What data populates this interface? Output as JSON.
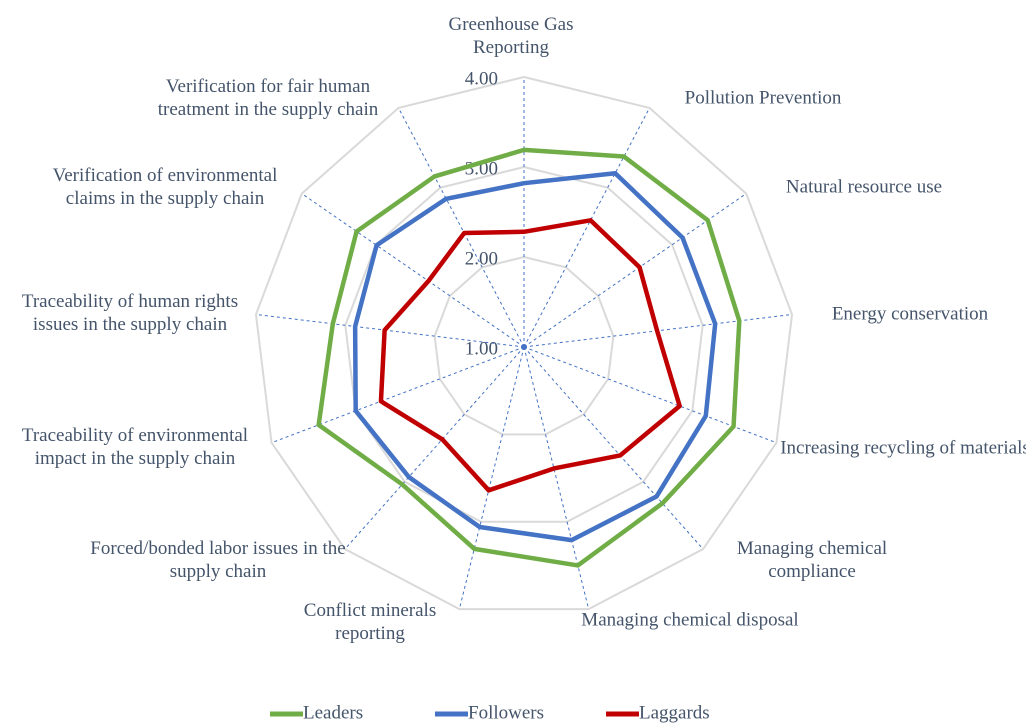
{
  "chart_data": {
    "type": "radar",
    "categories": [
      "Greenhouse Gas Reporting",
      "Pollution Prevention",
      "Natural resource use",
      "Energy conservation",
      "Increasing recycling of materials",
      "Managing chemical compliance",
      "Managing chemical disposal",
      "Conflict minerals reporting",
      "Forced/bonded labor issues in the supply chain",
      "Traceability of environmental impact in the supply chain",
      "Traceability of human rights issues in the supply chain",
      "Verification of environmental claims in the supply chain",
      "Verification for fair human treatment in the supply chain"
    ],
    "series": [
      {
        "name": "Leaders",
        "color": "#70ad47",
        "values": [
          3.19,
          3.39,
          3.48,
          3.41,
          3.49,
          3.32,
          3.5,
          3.31,
          3.04,
          3.44,
          3.14,
          3.26,
          3.14
        ]
      },
      {
        "name": "Followers",
        "color": "#4472c4",
        "values": [
          2.82,
          3.18,
          3.14,
          3.14,
          3.16,
          3.22,
          3.21,
          3.06,
          2.93,
          3.0,
          2.89,
          2.99,
          2.86
        ]
      },
      {
        "name": "Laggards",
        "color": "#c00000",
        "values": [
          2.28,
          2.59,
          2.56,
          2.49,
          2.85,
          2.61,
          2.39,
          2.64,
          2.37,
          2.7,
          2.56,
          2.29,
          2.43
        ]
      }
    ],
    "ylim": [
      1,
      4
    ],
    "yticks": [
      {
        "value": 1,
        "label": "1.00"
      },
      {
        "value": 2,
        "label": "2.00"
      },
      {
        "value": 3,
        "label": "3.00"
      },
      {
        "value": 4,
        "label": "4.00"
      }
    ],
    "grid": true,
    "legend": "bottom"
  }
}
